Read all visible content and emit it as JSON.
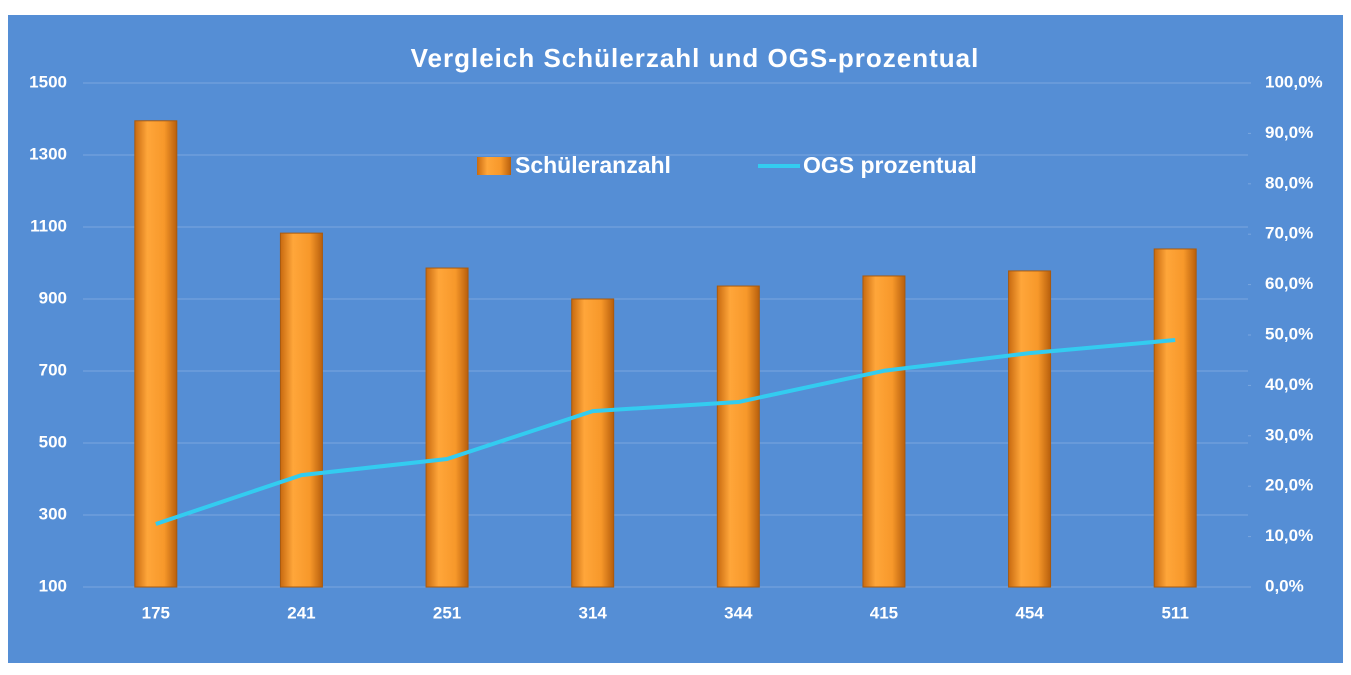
{
  "chart_data": {
    "type": "bar",
    "title": "Vergleich Schülerzahl und OGS-prozentual",
    "categories": [
      "175",
      "241",
      "251",
      "314",
      "344",
      "415",
      "454",
      "511"
    ],
    "series": [
      {
        "name": "Schüleranzahl",
        "type": "bar",
        "color": "#f7982a",
        "values": [
          1395,
          1083,
          986,
          900,
          936,
          964,
          978,
          1039
        ]
      },
      {
        "name": "OGS prozentual",
        "type": "line",
        "axis": "y2",
        "color": "#33ccf0",
        "values": [
          12.5,
          22.2,
          25.4,
          34.9,
          36.7,
          42.9,
          46.4,
          49.0
        ]
      }
    ],
    "ylim": [
      100,
      1500
    ],
    "yticks": [
      100,
      300,
      500,
      700,
      900,
      1100,
      1300,
      1500
    ],
    "y2lim": [
      0,
      100
    ],
    "y2ticks": [
      {
        "value": 0,
        "label": "0,0%"
      },
      {
        "value": 10,
        "label": "10,0%"
      },
      {
        "value": 20,
        "label": "20,0%"
      },
      {
        "value": 30,
        "label": "30,0%"
      },
      {
        "value": 40,
        "label": "40,0%"
      },
      {
        "value": 50,
        "label": "50,0%"
      },
      {
        "value": 60,
        "label": "60,0%"
      },
      {
        "value": 70,
        "label": "70,0%"
      },
      {
        "value": 80,
        "label": "80,0%"
      },
      {
        "value": 90,
        "label": "90,0%"
      },
      {
        "value": 100,
        "label": "100,0%"
      }
    ],
    "grid": true,
    "legend": "top"
  }
}
